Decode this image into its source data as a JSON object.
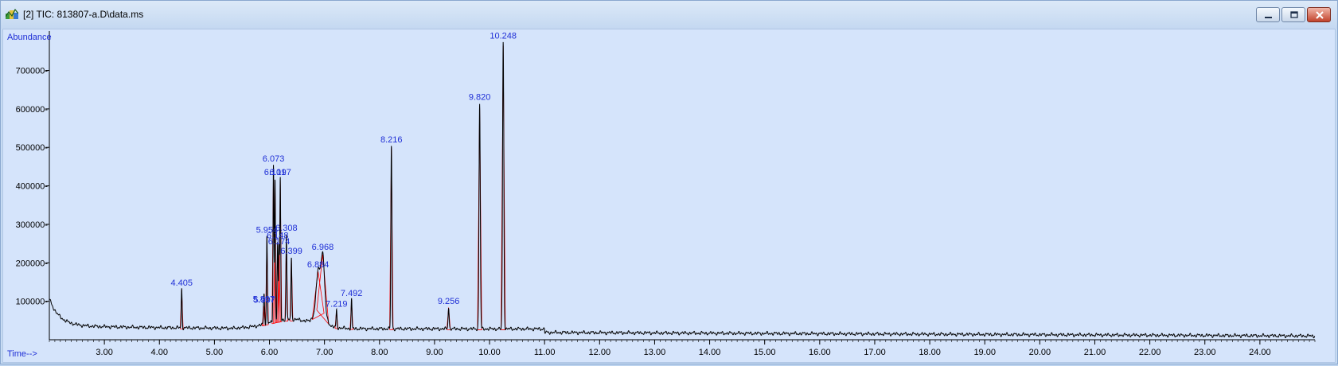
{
  "window": {
    "title": "[2] TIC: 813807-a.D\\data.ms",
    "controls": [
      "minimize",
      "restore",
      "close"
    ]
  },
  "chart_data": {
    "type": "line",
    "title": "",
    "ylabel": "Abundance",
    "xlabel": "Time-->",
    "xlim": [
      2.0,
      25.0
    ],
    "ylim": [
      0,
      790000
    ],
    "x_ticks": [
      "3.00",
      "4.00",
      "5.00",
      "6.00",
      "7.00",
      "8.00",
      "9.00",
      "10.00",
      "11.00",
      "12.00",
      "13.00",
      "14.00",
      "15.00",
      "16.00",
      "17.00",
      "18.00",
      "19.00",
      "20.00",
      "21.00",
      "22.00",
      "23.00",
      "24.00"
    ],
    "x_tick_values": [
      3,
      4,
      5,
      6,
      7,
      8,
      9,
      10,
      11,
      12,
      13,
      14,
      15,
      16,
      17,
      18,
      19,
      20,
      21,
      22,
      23,
      24
    ],
    "y_ticks": [
      "100000",
      "200000",
      "300000",
      "400000",
      "500000",
      "600000",
      "700000"
    ],
    "y_tick_values": [
      100000,
      200000,
      300000,
      400000,
      500000,
      600000,
      700000
    ],
    "grid": false,
    "line_color": "#000000",
    "label_color": "#1f2fd6",
    "integration_color": "#ff0000",
    "peaks": [
      {
        "rt": 4.405,
        "label": "4.405",
        "height": 132000
      },
      {
        "rt": 5.897,
        "label": "5.897",
        "height": 90000
      },
      {
        "rt": 5.907,
        "label": "5.907",
        "height": 88000
      },
      {
        "rt": 5.954,
        "label": "5.954",
        "height": 270000
      },
      {
        "rt": 6.073,
        "label": "6.073",
        "height": 455000
      },
      {
        "rt": 6.101,
        "label": "6.101",
        "height": 420000
      },
      {
        "rt": 6.148,
        "label": "6.148",
        "height": 255000
      },
      {
        "rt": 6.174,
        "label": "6.174",
        "height": 240000
      },
      {
        "rt": 6.197,
        "label": "6.197",
        "height": 420000
      },
      {
        "rt": 6.308,
        "label": "6.308",
        "height": 275000
      },
      {
        "rt": 6.399,
        "label": "6.399",
        "height": 215000
      },
      {
        "rt": 6.884,
        "label": "6.884",
        "height": 180000
      },
      {
        "rt": 6.968,
        "label": "6.968",
        "height": 225000
      },
      {
        "rt": 7.219,
        "label": "7.219",
        "height": 78000
      },
      {
        "rt": 7.492,
        "label": "7.492",
        "height": 105000
      },
      {
        "rt": 8.216,
        "label": "8.216",
        "height": 505000
      },
      {
        "rt": 9.256,
        "label": "9.256",
        "height": 85000
      },
      {
        "rt": 9.82,
        "label": "9.820",
        "height": 615000
      },
      {
        "rt": 10.248,
        "label": "10.248",
        "height": 775000
      }
    ]
  }
}
